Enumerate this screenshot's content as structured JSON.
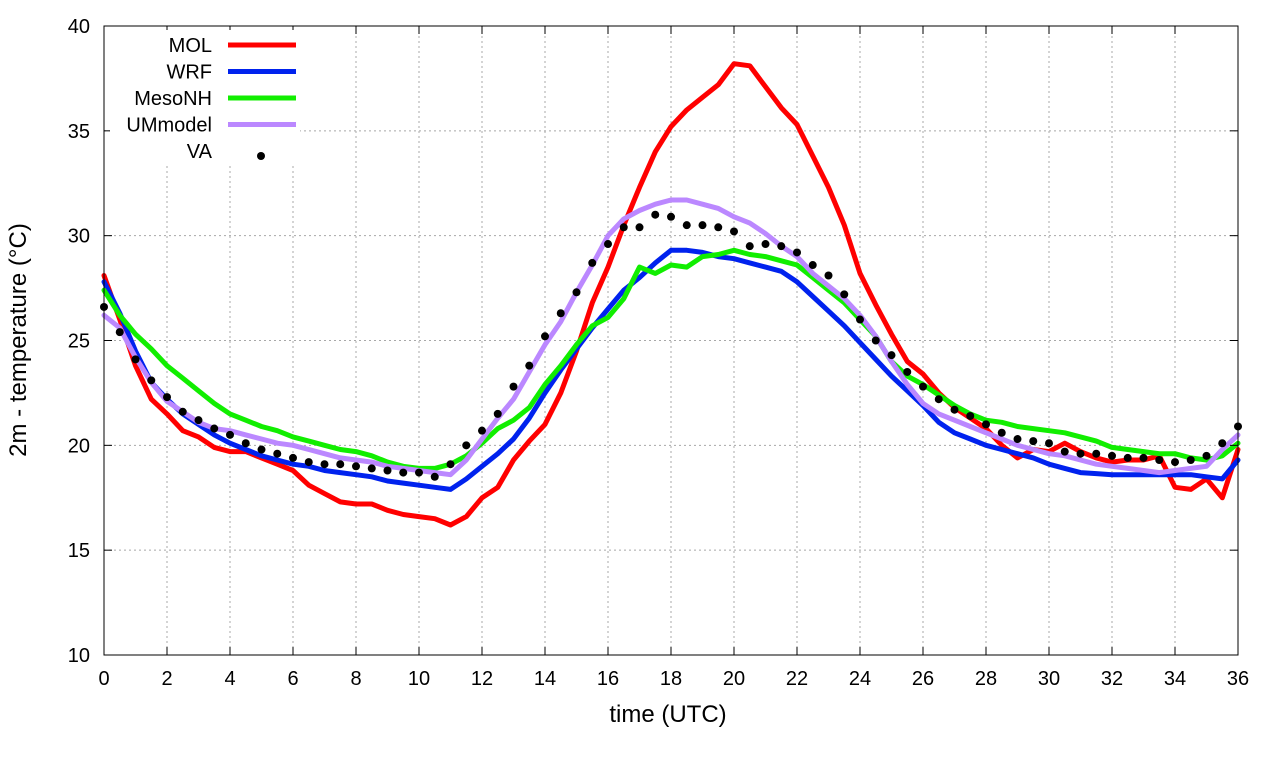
{
  "chart_data": {
    "type": "line",
    "title": "",
    "xlabel": "time (UTC)",
    "ylabel": "2m - temperature (°C)",
    "xlim": [
      0,
      36
    ],
    "ylim": [
      10,
      40
    ],
    "xticks": [
      0,
      2,
      4,
      6,
      8,
      10,
      12,
      14,
      16,
      18,
      20,
      22,
      24,
      26,
      28,
      30,
      32,
      34,
      36
    ],
    "yticks": [
      10,
      15,
      20,
      25,
      30,
      35,
      40
    ],
    "grid": true,
    "legend_position": "top-left",
    "series": [
      {
        "name": "MOL",
        "style": "line",
        "color": "#ff0000",
        "x": [
          0,
          0.5,
          1,
          1.5,
          2,
          2.5,
          3,
          3.5,
          4,
          4.5,
          5,
          5.5,
          6,
          6.5,
          7,
          7.5,
          8,
          8.5,
          9,
          9.5,
          10,
          10.5,
          11,
          11.5,
          12,
          12.5,
          13,
          13.5,
          14,
          14.5,
          15,
          15.5,
          16,
          16.5,
          17,
          17.5,
          18,
          18.5,
          19,
          19.5,
          20,
          20.5,
          21,
          21.5,
          22,
          22.5,
          23,
          23.5,
          24,
          24.5,
          25,
          25.5,
          26,
          26.5,
          27,
          27.5,
          28,
          28.5,
          29,
          29.5,
          30,
          30.5,
          31,
          31.5,
          32,
          32.5,
          33,
          33.5,
          34,
          34.5,
          35,
          35.5,
          36
        ],
        "values": [
          28.1,
          26.0,
          23.8,
          22.2,
          21.5,
          20.7,
          20.4,
          19.9,
          19.7,
          19.7,
          19.4,
          19.1,
          18.8,
          18.1,
          17.7,
          17.3,
          17.2,
          17.2,
          16.9,
          16.7,
          16.6,
          16.5,
          16.2,
          16.6,
          17.5,
          18.0,
          19.3,
          20.2,
          21.0,
          22.5,
          24.5,
          26.8,
          28.5,
          30.5,
          32.3,
          34.0,
          35.2,
          36.0,
          36.6,
          37.2,
          38.2,
          38.1,
          37.1,
          36.1,
          35.3,
          33.8,
          32.3,
          30.5,
          28.2,
          26.7,
          25.3,
          24.0,
          23.4,
          22.5,
          21.8,
          21.3,
          20.8,
          20.0,
          19.4,
          19.8,
          19.7,
          20.1,
          19.7,
          19.4,
          19.2,
          19.3,
          19.3,
          19.5,
          18.0,
          17.9,
          18.4,
          17.5,
          19.8
        ]
      },
      {
        "name": "WRF",
        "style": "line",
        "color": "#0022ee",
        "x": [
          0,
          0.5,
          1,
          1.5,
          2,
          2.5,
          3,
          3.5,
          4,
          4.5,
          5,
          5.5,
          6,
          6.5,
          7,
          7.5,
          8,
          8.5,
          9,
          9.5,
          10,
          10.5,
          11,
          11.5,
          12,
          12.5,
          13,
          13.5,
          14,
          14.5,
          15,
          15.5,
          16,
          16.5,
          17,
          17.5,
          18,
          18.5,
          19,
          19.5,
          20,
          20.5,
          21,
          21.5,
          22,
          22.5,
          23,
          23.5,
          24,
          24.5,
          25,
          25.5,
          26,
          26.5,
          27,
          27.5,
          28,
          28.5,
          29,
          29.5,
          30,
          30.5,
          31,
          31.5,
          32,
          32.5,
          33,
          33.5,
          34,
          34.5,
          35,
          35.5,
          36
        ],
        "values": [
          27.8,
          26.3,
          24.5,
          23.0,
          22.2,
          21.5,
          21.0,
          20.5,
          20.1,
          19.8,
          19.5,
          19.3,
          19.1,
          19.0,
          18.8,
          18.7,
          18.6,
          18.5,
          18.3,
          18.2,
          18.1,
          18.0,
          17.9,
          18.4,
          19.0,
          19.6,
          20.3,
          21.3,
          22.5,
          23.6,
          24.6,
          25.6,
          26.5,
          27.4,
          28.0,
          28.7,
          29.3,
          29.3,
          29.2,
          29.0,
          28.9,
          28.7,
          28.5,
          28.3,
          27.8,
          27.1,
          26.4,
          25.7,
          24.9,
          24.1,
          23.3,
          22.6,
          21.9,
          21.1,
          20.6,
          20.3,
          20.0,
          19.8,
          19.6,
          19.4,
          19.1,
          18.9,
          18.7,
          18.65,
          18.6,
          18.6,
          18.6,
          18.6,
          18.6,
          18.6,
          18.5,
          18.4,
          19.3
        ]
      },
      {
        "name": "MesoNH",
        "style": "line",
        "color": "#11ee00",
        "x": [
          0,
          0.5,
          1,
          1.5,
          2,
          2.5,
          3,
          3.5,
          4,
          4.5,
          5,
          5.5,
          6,
          6.5,
          7,
          7.5,
          8,
          8.5,
          9,
          9.5,
          10,
          10.5,
          11,
          11.5,
          12,
          12.5,
          13,
          13.5,
          14,
          14.5,
          15,
          15.5,
          16,
          16.5,
          17,
          17.5,
          18,
          18.5,
          19,
          19.5,
          20,
          20.5,
          21,
          21.5,
          22,
          22.5,
          23,
          23.5,
          24,
          24.5,
          25,
          25.5,
          26,
          26.5,
          27,
          27.5,
          28,
          28.5,
          29,
          29.5,
          30,
          30.5,
          31,
          31.5,
          32,
          32.5,
          33,
          33.5,
          34,
          34.5,
          35,
          35.5,
          36
        ],
        "values": [
          27.4,
          26.2,
          25.3,
          24.6,
          23.8,
          23.2,
          22.6,
          22.0,
          21.5,
          21.2,
          20.9,
          20.7,
          20.4,
          20.2,
          20.0,
          19.8,
          19.7,
          19.5,
          19.2,
          19.0,
          18.9,
          18.9,
          19.1,
          19.5,
          20.1,
          20.8,
          21.2,
          21.8,
          22.9,
          23.8,
          24.8,
          25.7,
          26.1,
          27.0,
          28.5,
          28.2,
          28.6,
          28.5,
          29.0,
          29.1,
          29.3,
          29.1,
          29.0,
          28.8,
          28.6,
          28.0,
          27.4,
          26.8,
          26.0,
          25.2,
          24.0,
          23.3,
          22.9,
          22.4,
          21.9,
          21.5,
          21.2,
          21.1,
          20.9,
          20.8,
          20.7,
          20.6,
          20.4,
          20.2,
          19.9,
          19.8,
          19.7,
          19.6,
          19.6,
          19.4,
          19.3,
          19.5,
          20.1
        ]
      },
      {
        "name": "UMmodel",
        "style": "line",
        "color": "#bb88ff",
        "x": [
          0,
          0.5,
          1,
          1.5,
          2,
          2.5,
          3,
          3.5,
          4,
          4.5,
          5,
          5.5,
          6,
          6.5,
          7,
          7.5,
          8,
          8.5,
          9,
          9.5,
          10,
          10.5,
          11,
          11.5,
          12,
          12.5,
          13,
          13.5,
          14,
          14.5,
          15,
          15.5,
          16,
          16.5,
          17,
          17.5,
          18,
          18.5,
          19,
          19.5,
          20,
          20.5,
          21,
          21.5,
          22,
          22.5,
          23,
          23.5,
          24,
          24.5,
          25,
          25.5,
          26,
          26.5,
          27,
          27.5,
          28,
          28.5,
          29,
          29.5,
          30,
          30.5,
          31,
          31.5,
          32,
          32.5,
          33,
          33.5,
          34,
          34.5,
          35,
          35.5,
          36
        ],
        "values": [
          26.2,
          25.6,
          24.2,
          23.0,
          22.1,
          21.6,
          21.1,
          20.8,
          20.7,
          20.5,
          20.3,
          20.1,
          20.0,
          19.8,
          19.6,
          19.4,
          19.3,
          19.2,
          19.0,
          18.9,
          18.8,
          18.7,
          18.6,
          19.3,
          20.3,
          21.3,
          22.2,
          23.5,
          24.8,
          25.9,
          27.3,
          28.6,
          30.0,
          30.8,
          31.2,
          31.5,
          31.7,
          31.7,
          31.5,
          31.3,
          30.9,
          30.6,
          30.1,
          29.5,
          29.0,
          28.2,
          27.6,
          27.0,
          26.2,
          25.2,
          24.0,
          22.9,
          22.0,
          21.5,
          21.2,
          20.9,
          20.6,
          20.3,
          20.0,
          19.8,
          19.6,
          19.5,
          19.3,
          19.1,
          19.0,
          18.9,
          18.8,
          18.7,
          18.8,
          18.9,
          19.0,
          19.8,
          20.5
        ]
      },
      {
        "name": "VA",
        "style": "points",
        "color": "#000000",
        "x": [
          0,
          0.5,
          1,
          1.5,
          2,
          2.5,
          3,
          3.5,
          4,
          4.5,
          5,
          5.5,
          6,
          6.5,
          7,
          7.5,
          8,
          8.5,
          9,
          9.5,
          10,
          10.5,
          11,
          11.5,
          12,
          12.5,
          13,
          13.5,
          14,
          14.5,
          15,
          15.5,
          16,
          16.5,
          17,
          17.5,
          18,
          18.5,
          19,
          19.5,
          20,
          20.5,
          21,
          21.5,
          22,
          22.5,
          23,
          23.5,
          24,
          24.5,
          25,
          25.5,
          26,
          26.5,
          27,
          27.5,
          28,
          28.5,
          29,
          29.5,
          30,
          30.5,
          31,
          31.5,
          32,
          32.5,
          33,
          33.5,
          34,
          34.5,
          35,
          35.5,
          36
        ],
        "values": [
          26.6,
          25.4,
          24.1,
          23.1,
          22.3,
          21.6,
          21.2,
          20.8,
          20.5,
          20.1,
          19.8,
          19.6,
          19.4,
          19.2,
          19.1,
          19.1,
          19.0,
          18.9,
          18.8,
          18.7,
          18.7,
          18.5,
          19.1,
          20.0,
          20.7,
          21.5,
          22.8,
          23.8,
          25.2,
          26.3,
          27.3,
          28.7,
          29.6,
          30.4,
          30.4,
          31.0,
          30.9,
          30.5,
          30.5,
          30.4,
          30.2,
          29.5,
          29.6,
          29.5,
          29.2,
          28.6,
          28.1,
          27.2,
          26.0,
          25.0,
          24.3,
          23.5,
          22.8,
          22.2,
          21.7,
          21.4,
          21.0,
          20.6,
          20.3,
          20.2,
          20.1,
          19.7,
          19.6,
          19.6,
          19.5,
          19.4,
          19.4,
          19.3,
          19.2,
          19.3,
          19.5,
          20.1,
          20.9
        ]
      }
    ]
  }
}
